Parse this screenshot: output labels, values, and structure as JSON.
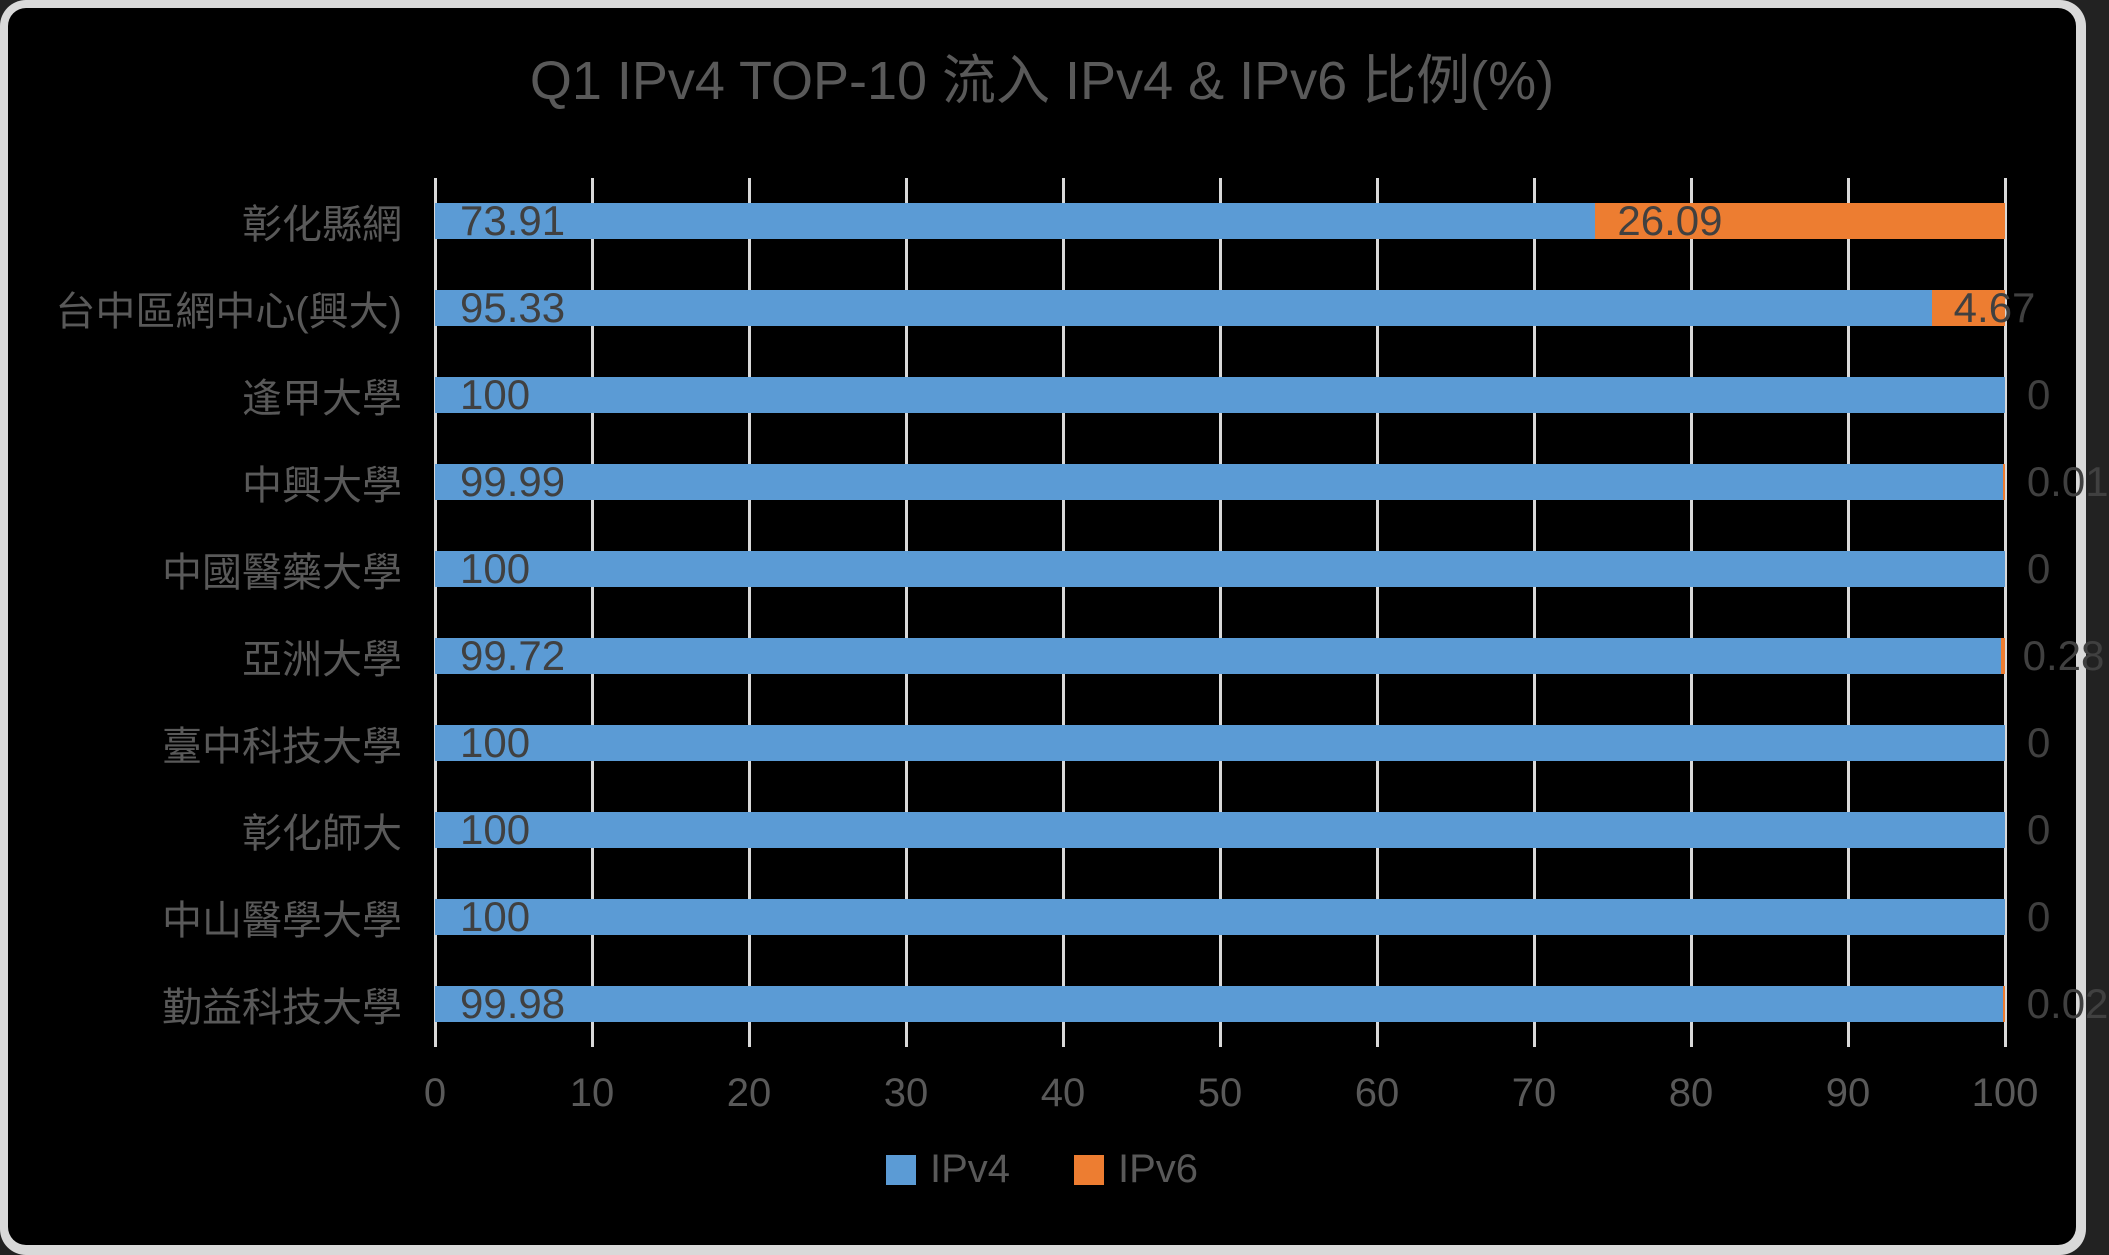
{
  "chart_data": {
    "type": "bar",
    "orientation": "horizontal",
    "stacked": true,
    "title": "Q1 IPv4 TOP-10 流入 IPv4 & IPv6 比例(%)",
    "categories": [
      "彰化縣網",
      "台中區網中心(興大)",
      "逢甲大學",
      "中興大學",
      "中國醫藥大學",
      "亞洲大學",
      "臺中科技大學",
      "彰化師大",
      "中山醫學大學",
      "勤益科技大學"
    ],
    "series": [
      {
        "name": "IPv4",
        "color": "#5B9BD5",
        "values": [
          73.91,
          95.33,
          100,
          99.99,
          100,
          99.72,
          100,
          100,
          100,
          99.98
        ]
      },
      {
        "name": "IPv6",
        "color": "#ED7D31",
        "values": [
          26.09,
          4.67,
          0,
          0.01,
          0,
          0.28,
          0,
          0,
          0,
          0.02
        ]
      }
    ],
    "x_ticks": [
      "0",
      "10",
      "20",
      "30",
      "40",
      "50",
      "60",
      "70",
      "80",
      "90",
      "100"
    ],
    "xlim": [
      0,
      100
    ],
    "grid": true,
    "legend_position": "bottom",
    "legend": [
      {
        "label": "IPv4",
        "color": "#5B9BD5"
      },
      {
        "label": "IPv6",
        "color": "#ED7D31"
      }
    ]
  },
  "colors": {
    "background": "#000000",
    "frame": "#D9D9D9",
    "gridline": "#D9D9D9",
    "title_text": "#595959",
    "axis_text": "#595959",
    "category_text": "#595959",
    "value_label_text": "#404040",
    "legend_text": "#595959",
    "ipv4_bar": "#5B9BD5",
    "ipv6_bar": "#ED7D31"
  }
}
